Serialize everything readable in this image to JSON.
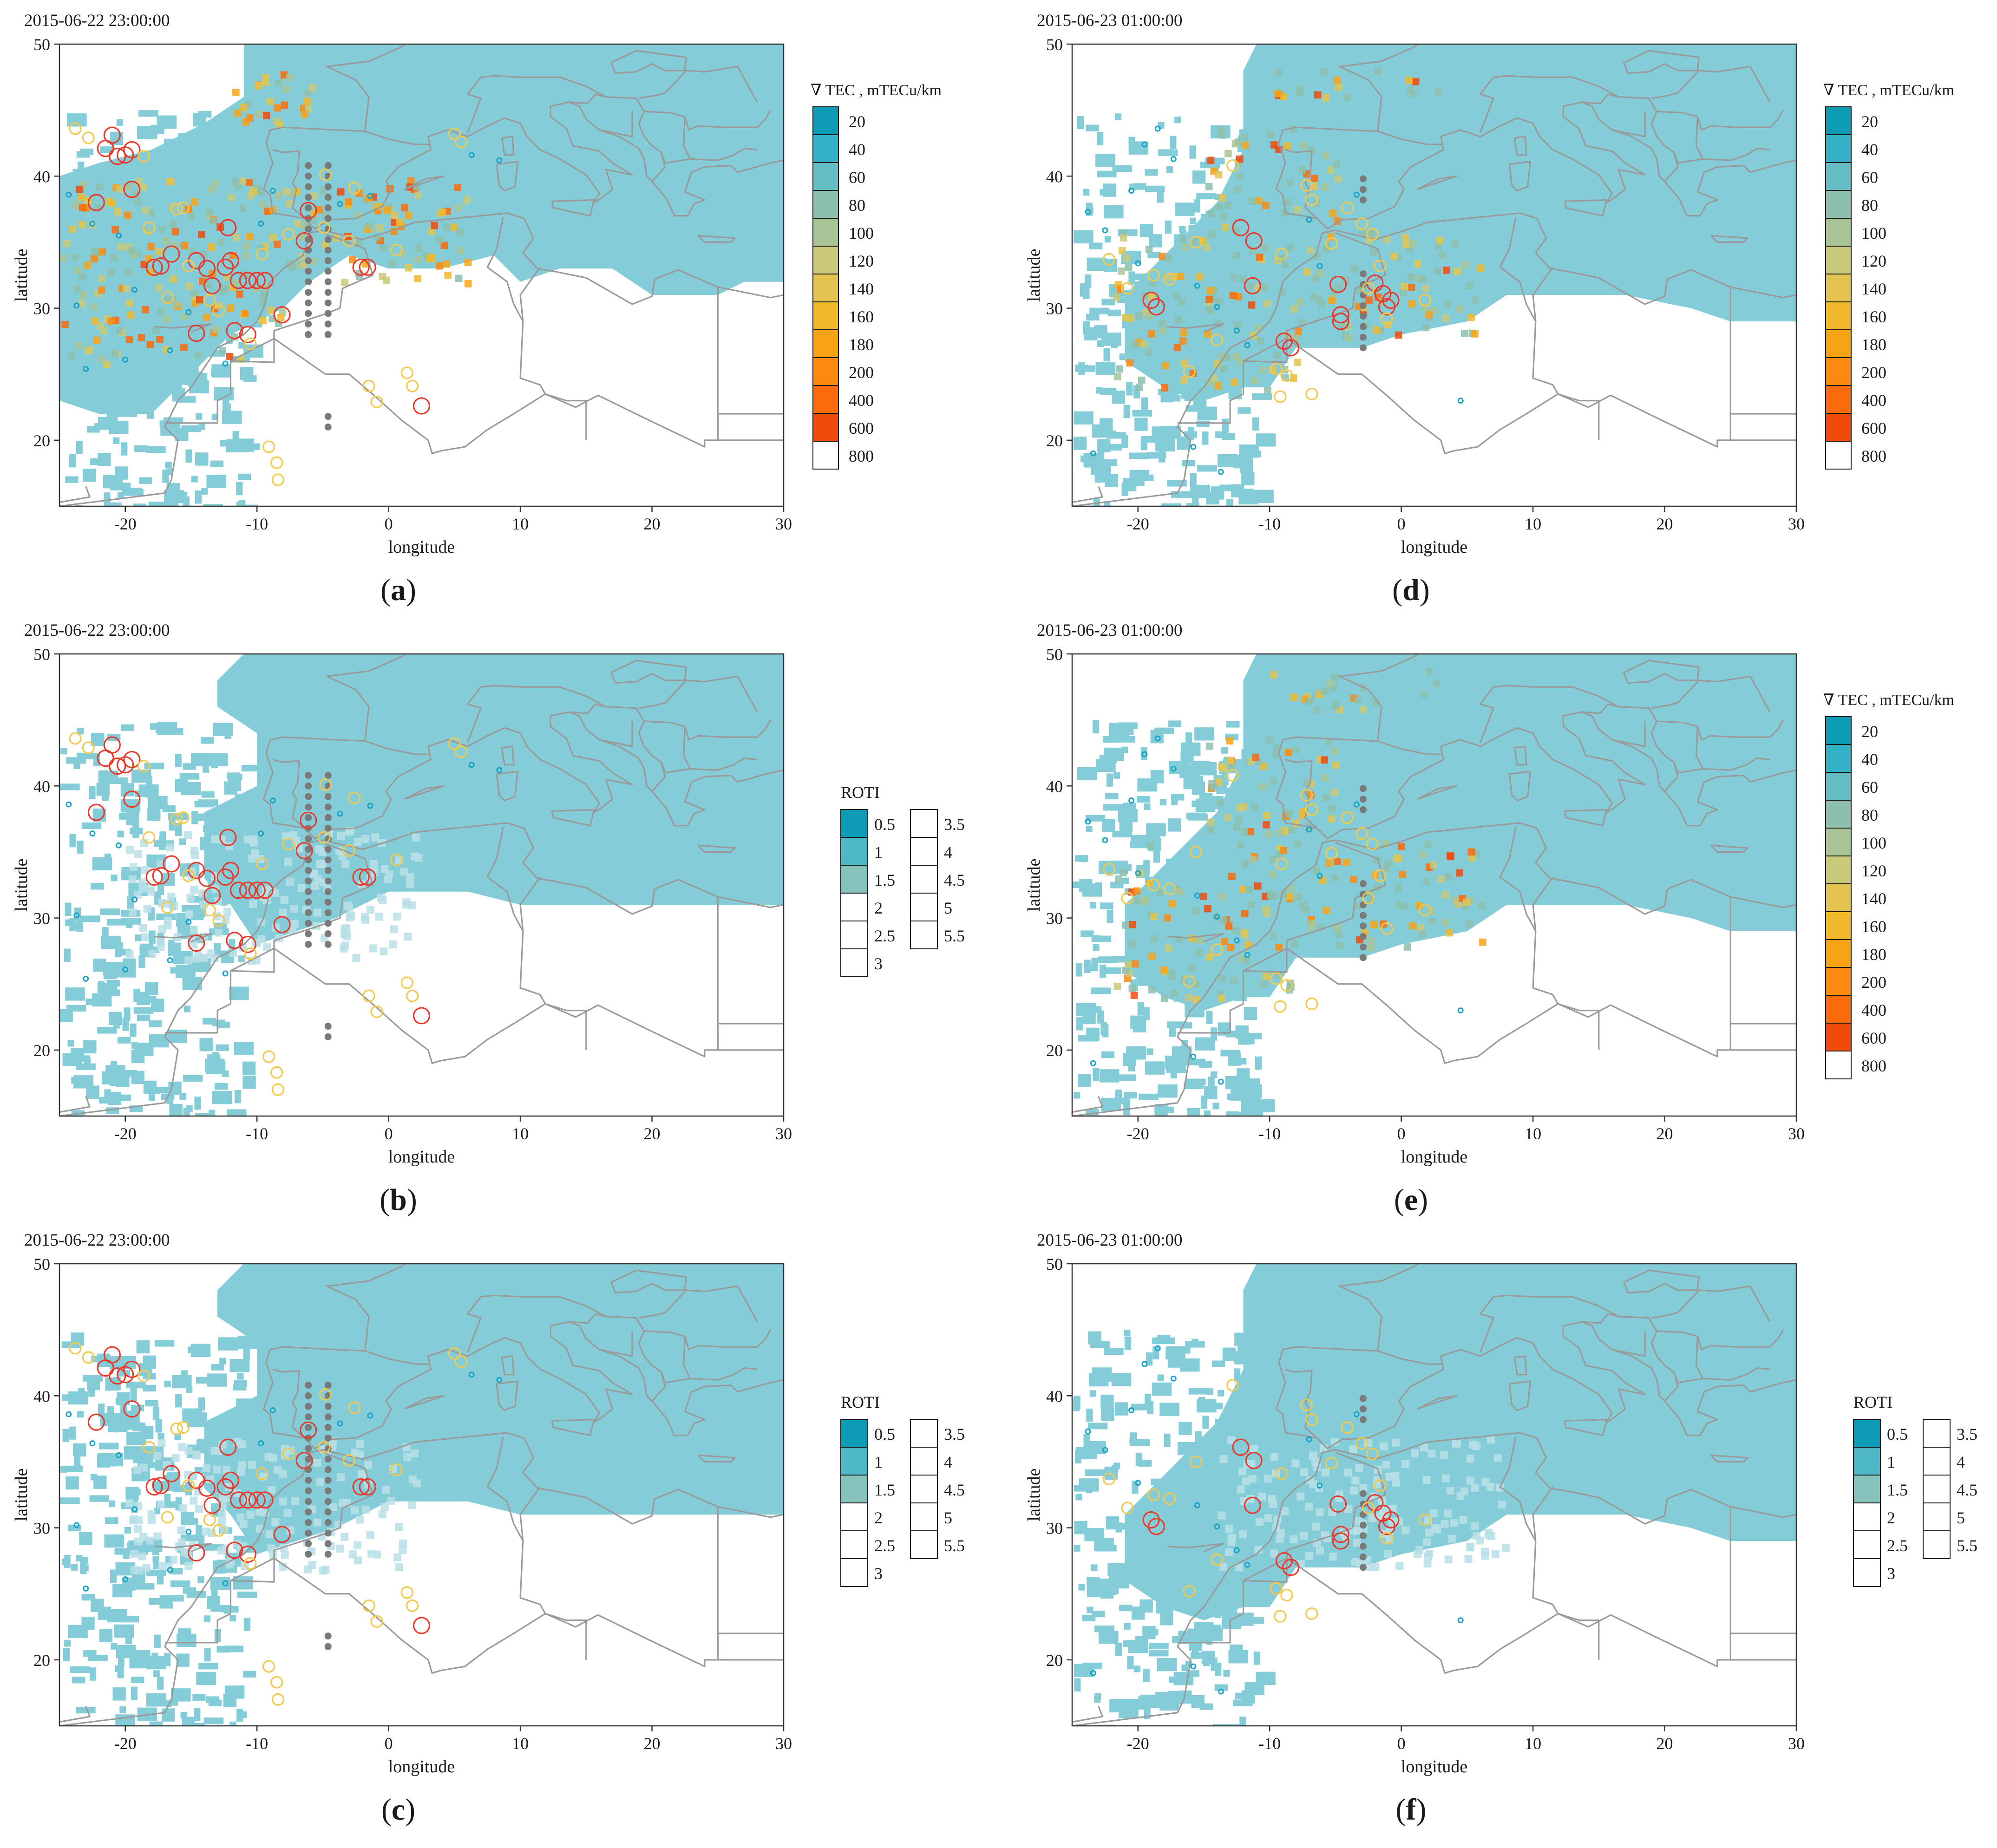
{
  "panels": [
    {
      "id": "a",
      "timestamp": "2015-06-22 23:00:00",
      "caption_letter": "a",
      "legend": {
        "type": "tec",
        "title": "∇ TEC , mTECu/km",
        "items": [
          {
            "label": "20",
            "color": "#0e9bb5"
          },
          {
            "label": "40",
            "color": "#34b1c6"
          },
          {
            "label": "60",
            "color": "#64bdc3"
          },
          {
            "label": "80",
            "color": "#8dbfad"
          },
          {
            "label": "100",
            "color": "#a8c497"
          },
          {
            "label": "120",
            "color": "#c9c979"
          },
          {
            "label": "140",
            "color": "#e3c450"
          },
          {
            "label": "160",
            "color": "#f1b82c"
          },
          {
            "label": "180",
            "color": "#f8a315"
          },
          {
            "label": "200",
            "color": "#fc8a10"
          },
          {
            "label": "400",
            "color": "#fb6a0b"
          },
          {
            "label": "600",
            "color": "#f04a0c"
          },
          {
            "label": "800",
            "color": "#ffffff"
          }
        ]
      }
    },
    {
      "id": "d",
      "timestamp": "2015-06-23 01:00:00",
      "caption_letter": "d",
      "legend": {
        "type": "tec",
        "title": "∇ TEC , mTECu/km",
        "items": [
          {
            "label": "20",
            "color": "#0e9bb5"
          },
          {
            "label": "40",
            "color": "#34b1c6"
          },
          {
            "label": "60",
            "color": "#64bdc3"
          },
          {
            "label": "80",
            "color": "#8dbfad"
          },
          {
            "label": "100",
            "color": "#a8c497"
          },
          {
            "label": "120",
            "color": "#c9c979"
          },
          {
            "label": "140",
            "color": "#e3c450"
          },
          {
            "label": "160",
            "color": "#f1b82c"
          },
          {
            "label": "180",
            "color": "#f8a315"
          },
          {
            "label": "200",
            "color": "#fc8a10"
          },
          {
            "label": "400",
            "color": "#fb6a0b"
          },
          {
            "label": "600",
            "color": "#f04a0c"
          },
          {
            "label": "800",
            "color": "#ffffff"
          }
        ]
      }
    },
    {
      "id": "b",
      "timestamp": "2015-06-22 23:00:00",
      "caption_letter": "b",
      "legend": {
        "type": "roti",
        "title": "ROTI",
        "col1": [
          {
            "label": "0.5",
            "color": "#0e9bb5"
          },
          {
            "label": "1",
            "color": "#4fb8c8"
          },
          {
            "label": "1.5",
            "color": "#88c2bd"
          },
          {
            "label": "2",
            "color": "#ffffff"
          },
          {
            "label": "2.5",
            "color": "#ffffff"
          },
          {
            "label": "3",
            "color": "#ffffff"
          }
        ],
        "col2": [
          {
            "label": "3.5",
            "color": "#ffffff"
          },
          {
            "label": "4",
            "color": "#ffffff"
          },
          {
            "label": "4.5",
            "color": "#ffffff"
          },
          {
            "label": "5",
            "color": "#ffffff"
          },
          {
            "label": "5.5",
            "color": "#ffffff"
          }
        ]
      }
    },
    {
      "id": "e",
      "timestamp": "2015-06-23 01:00:00",
      "caption_letter": "e",
      "legend": {
        "type": "tec",
        "title": "∇ TEC , mTECu/km",
        "items": [
          {
            "label": "20",
            "color": "#0e9bb5"
          },
          {
            "label": "40",
            "color": "#34b1c6"
          },
          {
            "label": "60",
            "color": "#64bdc3"
          },
          {
            "label": "80",
            "color": "#8dbfad"
          },
          {
            "label": "100",
            "color": "#a8c497"
          },
          {
            "label": "120",
            "color": "#c9c979"
          },
          {
            "label": "140",
            "color": "#e3c450"
          },
          {
            "label": "160",
            "color": "#f1b82c"
          },
          {
            "label": "180",
            "color": "#f8a315"
          },
          {
            "label": "200",
            "color": "#fc8a10"
          },
          {
            "label": "400",
            "color": "#fb6a0b"
          },
          {
            "label": "600",
            "color": "#f04a0c"
          },
          {
            "label": "800",
            "color": "#ffffff"
          }
        ]
      }
    },
    {
      "id": "c",
      "timestamp": "2015-06-22 23:00:00",
      "caption_letter": "c",
      "legend": {
        "type": "roti",
        "title": "ROTI",
        "col1": [
          {
            "label": "0.5",
            "color": "#0e9bb5"
          },
          {
            "label": "1",
            "color": "#4fb8c8"
          },
          {
            "label": "1.5",
            "color": "#88c2bd"
          },
          {
            "label": "2",
            "color": "#ffffff"
          },
          {
            "label": "2.5",
            "color": "#ffffff"
          },
          {
            "label": "3",
            "color": "#ffffff"
          }
        ],
        "col2": [
          {
            "label": "3.5",
            "color": "#ffffff"
          },
          {
            "label": "4",
            "color": "#ffffff"
          },
          {
            "label": "4.5",
            "color": "#ffffff"
          },
          {
            "label": "5",
            "color": "#ffffff"
          },
          {
            "label": "5.5",
            "color": "#ffffff"
          }
        ]
      }
    },
    {
      "id": "f",
      "timestamp": "2015-06-23 01:00:00",
      "caption_letter": "f",
      "legend": {
        "type": "roti",
        "title": "ROTI",
        "col1": [
          {
            "label": "0.5",
            "color": "#0e9bb5"
          },
          {
            "label": "1",
            "color": "#4fb8c8"
          },
          {
            "label": "1.5",
            "color": "#88c2bd"
          },
          {
            "label": "2",
            "color": "#ffffff"
          },
          {
            "label": "2.5",
            "color": "#ffffff"
          },
          {
            "label": "3",
            "color": "#ffffff"
          }
        ],
        "col2": [
          {
            "label": "3.5",
            "color": "#ffffff"
          },
          {
            "label": "4",
            "color": "#ffffff"
          },
          {
            "label": "4.5",
            "color": "#ffffff"
          },
          {
            "label": "5",
            "color": "#ffffff"
          },
          {
            "label": "5.5",
            "color": "#ffffff"
          }
        ]
      }
    }
  ],
  "map": {
    "x_axis_label": "longitude",
    "y_axis_label": "latitude",
    "lon_range": [
      -25,
      30
    ],
    "lat_range": [
      15,
      50
    ],
    "x_ticks": [
      "-20",
      "-10",
      "0",
      "10",
      "20",
      "30"
    ],
    "x_tick_values": [
      -20,
      -10,
      0,
      10,
      20,
      30
    ],
    "y_ticks": [
      "20",
      "30",
      "40",
      "50"
    ],
    "y_tick_values": [
      20,
      30,
      40,
      50
    ],
    "coverage_color": "#84ccd8",
    "border_color": "#9a9a9a",
    "marker_colors": {
      "large": "#e8392a",
      "medium": "#f2c94c",
      "small": "#1aa3c4",
      "station": "#7a7a7a"
    }
  }
}
